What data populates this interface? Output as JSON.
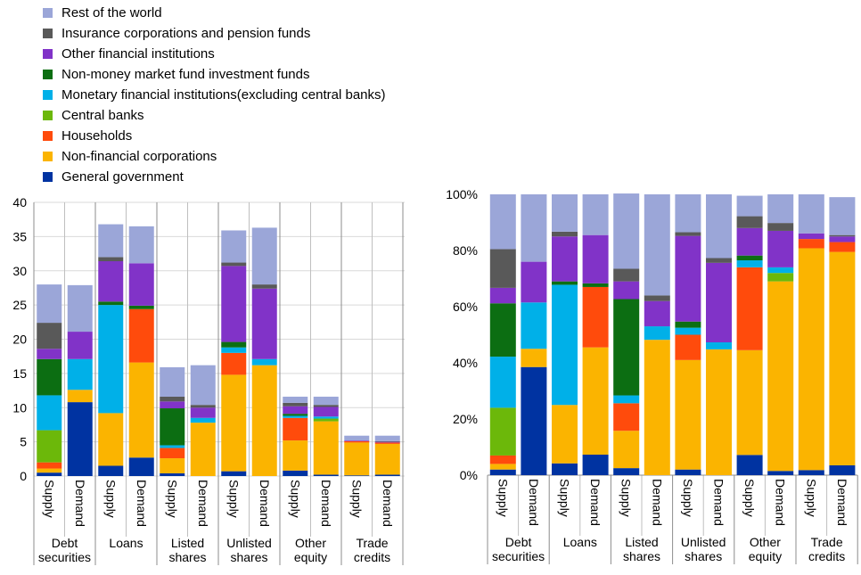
{
  "legend": [
    {
      "label": "Rest of the world",
      "color": "#9ba6d8"
    },
    {
      "label": "Insurance corporations and pension funds",
      "color": "#595959"
    },
    {
      "label": "Other financial institutions",
      "color": "#8133c8"
    },
    {
      "label": "Non-money market fund investment funds",
      "color": "#0c6e12"
    },
    {
      "label": "Monetary financial institutions(excluding central banks)",
      "color": "#00b0e8"
    },
    {
      "label": "Central banks",
      "color": "#6cb80a"
    },
    {
      "label": "Households",
      "color": "#ff4b0c"
    },
    {
      "label": "Non-financial corporations",
      "color": "#fbb400"
    },
    {
      "label": "General government",
      "color": "#0033a1"
    }
  ],
  "chart_data": [
    {
      "type": "bar",
      "stacked": true,
      "categories": [
        "Supply",
        "Demand",
        "Supply",
        "Demand",
        "Supply",
        "Demand",
        "Supply",
        "Demand",
        "Supply",
        "Demand",
        "Supply",
        "Demand"
      ],
      "groups": [
        "Debt\nsecurities",
        "Loans",
        "Listed\nshares",
        "Unlisted\nshares",
        "Other\nequity",
        "Trade\ncredits"
      ],
      "ylim": [
        0,
        40
      ],
      "yticks": [
        "0",
        "5",
        "10",
        "15",
        "20",
        "25",
        "30",
        "35",
        "40"
      ],
      "grid": true,
      "series": [
        {
          "name": "General government",
          "values": [
            0.5,
            10.8,
            1.5,
            2.7,
            0.4,
            0,
            0.7,
            0,
            0.8,
            0.2,
            0.1,
            0.2
          ]
        },
        {
          "name": "Non-financial corporations",
          "values": [
            0.6,
            1.8,
            7.7,
            13.9,
            2.2,
            7.8,
            14.1,
            16.2,
            4.4,
            7.8,
            4.8,
            4.5
          ]
        },
        {
          "name": "Households",
          "values": [
            0.9,
            0,
            0,
            7.8,
            1.5,
            0,
            3.2,
            0,
            3.3,
            0,
            0.2,
            0.2
          ]
        },
        {
          "name": "Central banks",
          "values": [
            4.7,
            0,
            0,
            0,
            0,
            0,
            0,
            0,
            0,
            0.4,
            0,
            0
          ]
        },
        {
          "name": "Monetary financial institutions(excluding central banks)",
          "values": [
            5.1,
            4.5,
            15.8,
            0,
            0.4,
            0.7,
            0.8,
            0.9,
            0.3,
            0.3,
            0,
            0
          ]
        },
        {
          "name": "Non-money market fund investment funds",
          "values": [
            5.3,
            0,
            0.5,
            0.5,
            5.4,
            0,
            0.8,
            0,
            0.3,
            0,
            0,
            0
          ]
        },
        {
          "name": "Other financial institutions",
          "values": [
            1.5,
            4.0,
            5.9,
            6.2,
            1.0,
            1.5,
            11.1,
            10.3,
            1.1,
            1.4,
            0.1,
            0.1
          ]
        },
        {
          "name": "Insurance corporations and pension funds",
          "values": [
            3.8,
            0,
            0.6,
            0,
            0.7,
            0.4,
            0.5,
            0.6,
            0.5,
            0.3,
            0,
            0.1
          ]
        },
        {
          "name": "Rest of the world",
          "values": [
            5.6,
            6.8,
            4.8,
            5.4,
            4.3,
            5.8,
            4.7,
            8.3,
            0.9,
            1.2,
            0.7,
            0.8
          ]
        }
      ]
    },
    {
      "type": "bar",
      "stacked": true,
      "percent": true,
      "categories": [
        "Supply",
        "Demand",
        "Supply",
        "Demand",
        "Supply",
        "Demand",
        "Supply",
        "Demand",
        "Supply",
        "Demand",
        "Supply",
        "Demand"
      ],
      "groups": [
        "Debt\nsecurities",
        "Loans",
        "Listed\nshares",
        "Unlisted\nshares",
        "Other\nequity",
        "Trade\ncredits"
      ],
      "ylim": [
        0,
        100
      ],
      "yticks": [
        "0%",
        "20%",
        "40%",
        "60%",
        "80%",
        "100%"
      ],
      "grid": false,
      "series": [
        {
          "name": "General government",
          "values": [
            2,
            38.5,
            4.2,
            7.3,
            2.5,
            0,
            2,
            0,
            7.2,
            1.5,
            1.8,
            3.5
          ]
        },
        {
          "name": "Non-financial corporations",
          "values": [
            2,
            6.5,
            20.8,
            38.2,
            13.3,
            48.2,
            39,
            44.8,
            37.3,
            67.5,
            79,
            76
          ]
        },
        {
          "name": "Households",
          "values": [
            3,
            0,
            0,
            21.5,
            9.8,
            0,
            9,
            0,
            29.5,
            0,
            3.3,
            3.5
          ]
        },
        {
          "name": "Central banks",
          "values": [
            17,
            0,
            0,
            0,
            0,
            0,
            0,
            0,
            0,
            3,
            0,
            0
          ]
        },
        {
          "name": "Monetary financial institutions(excluding central banks)",
          "values": [
            18.2,
            16.5,
            42.8,
            0,
            2.8,
            4.8,
            2.5,
            2.5,
            2.5,
            2,
            0,
            0
          ]
        },
        {
          "name": "Non-money market fund investment funds",
          "values": [
            19,
            0,
            1.2,
            1.3,
            34.3,
            0,
            2.2,
            0,
            1.7,
            0,
            0,
            0
          ]
        },
        {
          "name": "Other financial institutions",
          "values": [
            5.5,
            14.5,
            16,
            17.2,
            6.3,
            9,
            30.5,
            28.3,
            9.8,
            13,
            2,
            2
          ]
        },
        {
          "name": "Insurance corporations and pension funds",
          "values": [
            13.8,
            0,
            1.7,
            0,
            4.5,
            2,
            1.3,
            1.7,
            4.2,
            2.8,
            0,
            0.5
          ]
        },
        {
          "name": "Rest of the world",
          "values": [
            19.5,
            24,
            13.3,
            14.5,
            26.8,
            36,
            13.5,
            22.7,
            7.3,
            10.2,
            13.9,
            13.5
          ]
        }
      ]
    }
  ]
}
